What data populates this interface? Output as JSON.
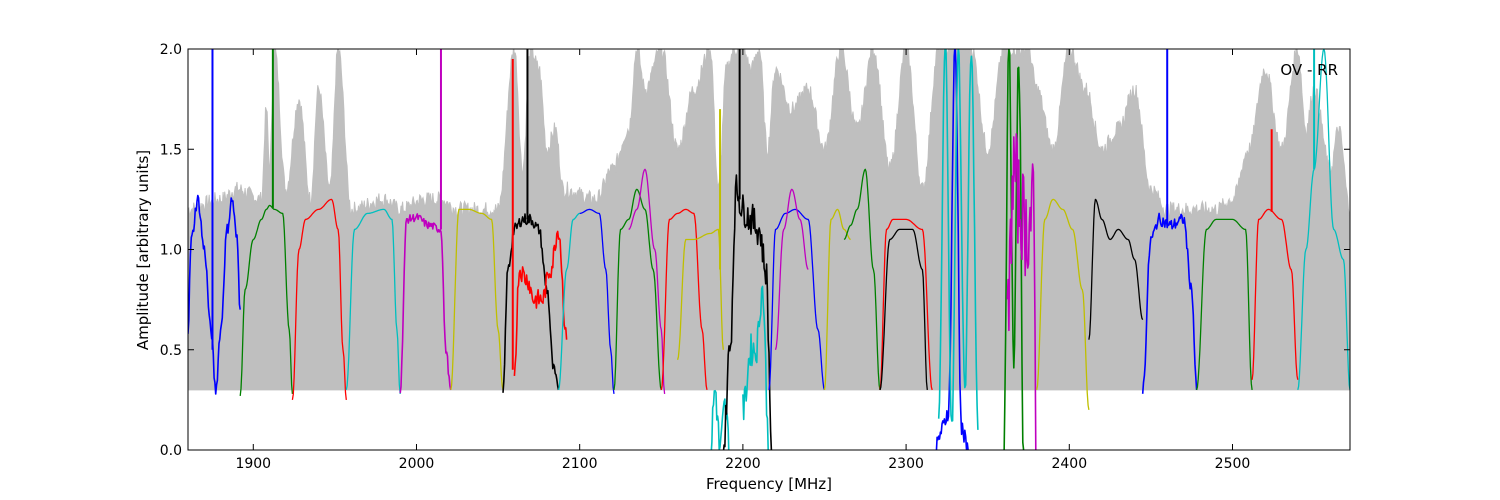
{
  "chart_data": {
    "type": "line",
    "annotation": "OV - RR",
    "xlabel": "Frequency [MHz]",
    "ylabel": "Amplitude [arbitrary units]",
    "xlim": [
      1860,
      2572
    ],
    "ylim": [
      0.0,
      2.0
    ],
    "xticks": [
      1900,
      2000,
      2100,
      2200,
      2300,
      2400,
      2500
    ],
    "xtick_labels": [
      "1900",
      "2000",
      "2100",
      "2200",
      "2300",
      "2400",
      "2500"
    ],
    "yticks": [
      0.0,
      0.5,
      1.0,
      1.5,
      2.0
    ],
    "ytick_labels": [
      "0.0",
      "0.5",
      "1.0",
      "1.5",
      "2.0"
    ],
    "grid": false,
    "background_envelope": {
      "color": "#bfbfbf",
      "x": [
        1860,
        1880,
        1890,
        1905,
        1908,
        1910,
        1913,
        1920,
        1928,
        1935,
        1940,
        1947,
        1952,
        1960,
        1980,
        1990,
        2005,
        2015,
        2025,
        2050,
        2060,
        2065,
        2070,
        2075,
        2080,
        2085,
        2090,
        2110,
        2120,
        2130,
        2135,
        2140,
        2150,
        2160,
        2170,
        2180,
        2185,
        2190,
        2195,
        2200,
        2205,
        2210,
        2215,
        2220,
        2230,
        2240,
        2250,
        2260,
        2270,
        2280,
        2290,
        2300,
        2310,
        2320,
        2330,
        2340,
        2350,
        2360,
        2365,
        2370,
        2375,
        2380,
        2390,
        2400,
        2410,
        2420,
        2430,
        2440,
        2450,
        2460,
        2470,
        2480,
        2490,
        2500,
        2510,
        2520,
        2530,
        2540,
        2545,
        2550,
        2560,
        2565,
        2572
      ],
      "y": [
        1.2,
        1.25,
        1.3,
        1.25,
        1.7,
        1.4,
        2.0,
        1.3,
        1.75,
        1.25,
        1.8,
        1.3,
        2.0,
        1.2,
        1.25,
        1.2,
        1.25,
        1.25,
        1.2,
        1.2,
        2.0,
        1.4,
        2.0,
        1.9,
        1.5,
        1.6,
        1.3,
        1.25,
        1.4,
        1.6,
        2.0,
        1.8,
        2.0,
        1.5,
        1.8,
        2.0,
        1.3,
        1.9,
        2.0,
        2.0,
        1.9,
        2.0,
        1.5,
        1.9,
        1.7,
        1.8,
        1.5,
        2.0,
        1.6,
        2.0,
        1.4,
        2.0,
        1.3,
        2.0,
        2.0,
        2.0,
        1.5,
        2.0,
        2.0,
        2.0,
        2.0,
        1.8,
        1.5,
        2.0,
        1.8,
        1.5,
        1.6,
        1.8,
        1.3,
        1.2,
        1.2,
        1.2,
        1.2,
        1.25,
        1.5,
        1.9,
        1.5,
        2.0,
        1.6,
        1.8,
        1.4,
        1.6,
        1.2
      ]
    },
    "series": [
      {
        "color": "#0000ff",
        "x": [
          1860,
          1862,
          1866,
          1870,
          1874,
          1877,
          1880,
          1884,
          1887,
          1890,
          1892
        ],
        "y": [
          0.6,
          1.05,
          1.25,
          1.0,
          0.6,
          0.3,
          0.6,
          1.1,
          1.25,
          1.05,
          0.7
        ],
        "noise": 0.03,
        "spike": {
          "x": 1875,
          "y": 2.0
        }
      },
      {
        "color": "#008000",
        "x": [
          1892,
          1895,
          1900,
          1905,
          1908,
          1910,
          1913,
          1918,
          1922,
          1924
        ],
        "y": [
          0.27,
          0.8,
          1.05,
          1.15,
          1.2,
          1.22,
          1.2,
          1.18,
          0.6,
          0.28
        ],
        "spike": {
          "x": 1912,
          "y": 2.0
        }
      },
      {
        "color": "#ff0000",
        "x": [
          1924,
          1928,
          1932,
          1940,
          1948,
          1952,
          1955,
          1957
        ],
        "y": [
          0.25,
          1.0,
          1.15,
          1.2,
          1.25,
          1.1,
          0.5,
          0.25
        ]
      },
      {
        "color": "#00bfbf",
        "x": [
          1957,
          1962,
          1970,
          1980,
          1985,
          1988,
          1990
        ],
        "y": [
          0.3,
          1.1,
          1.18,
          1.2,
          1.15,
          0.6,
          0.28
        ]
      },
      {
        "color": "#bf00bf",
        "x": [
          1990,
          1994,
          2000,
          2008,
          2015,
          2018,
          2021
        ],
        "y": [
          0.3,
          1.15,
          1.16,
          1.12,
          1.1,
          0.5,
          0.3
        ],
        "noise": 0.02,
        "spike": {
          "x": 2015,
          "y": 2.0
        }
      },
      {
        "color": "#bfbf00",
        "x": [
          2021,
          2026,
          2032,
          2040,
          2046,
          2050,
          2053
        ],
        "y": [
          0.3,
          1.2,
          1.2,
          1.18,
          1.15,
          0.6,
          0.3
        ]
      },
      {
        "color": "#000000",
        "x": [
          2053,
          2056,
          2060,
          2065,
          2070,
          2075,
          2080,
          2084,
          2087
        ],
        "y": [
          0.27,
          0.9,
          1.1,
          1.15,
          1.15,
          1.1,
          0.8,
          0.4,
          0.3
        ],
        "noise": 0.03,
        "spike": {
          "x": 2068,
          "y": 2.0
        }
      },
      {
        "color": "#ff0000",
        "x": [
          2060,
          2063,
          2068,
          2072,
          2077,
          2082,
          2087,
          2092
        ],
        "y": [
          0.4,
          0.9,
          0.85,
          0.75,
          0.75,
          0.9,
          1.1,
          0.55
        ],
        "noise": 0.05,
        "spike": {
          "x": 2059,
          "y": 1.95
        }
      },
      {
        "color": "#00bfbf",
        "x": [
          2087,
          2092,
          2096,
          2100
        ],
        "y": [
          0.3,
          0.9,
          1.15,
          1.18
        ]
      },
      {
        "color": "#0000ff",
        "x": [
          2100,
          2106,
          2112,
          2116,
          2119,
          2121
        ],
        "y": [
          1.18,
          1.2,
          1.18,
          0.9,
          0.5,
          0.28
        ]
      },
      {
        "color": "#008000",
        "x": [
          2121,
          2125,
          2130,
          2135,
          2140,
          2145,
          2150
        ],
        "y": [
          0.3,
          1.1,
          1.15,
          1.3,
          1.2,
          0.9,
          0.3
        ]
      },
      {
        "color": "#bf00bf",
        "x": [
          2130,
          2135,
          2140,
          2146,
          2150,
          2152
        ],
        "y": [
          1.1,
          1.2,
          1.4,
          1.0,
          0.6,
          0.28
        ]
      },
      {
        "color": "#ff0000",
        "x": [
          2150,
          2155,
          2160,
          2165,
          2170,
          2175,
          2178
        ],
        "y": [
          0.3,
          1.15,
          1.18,
          1.2,
          1.18,
          0.6,
          0.3
        ]
      },
      {
        "color": "#bfbf00",
        "x": [
          2160,
          2165,
          2170,
          2180,
          2185,
          2188
        ],
        "y": [
          0.45,
          1.05,
          1.05,
          1.08,
          1.1,
          0.5
        ],
        "spike": {
          "x": 2186,
          "y": 1.7
        }
      },
      {
        "color": "#00bfbf",
        "x": [
          2180,
          2183,
          2186,
          2189,
          2192
        ],
        "y": [
          0.0,
          0.3,
          0.0,
          0.2,
          0.0
        ],
        "noise": 0.1
      },
      {
        "color": "#000000",
        "x": [
          2188,
          2192,
          2196,
          2200,
          2205,
          2210,
          2214,
          2218
        ],
        "y": [
          0.0,
          0.5,
          1.3,
          1.2,
          1.15,
          1.1,
          0.9,
          0.0
        ],
        "noise": 0.08,
        "spike": {
          "x": 2198,
          "y": 2.0
        }
      },
      {
        "color": "#00bfbf",
        "x": [
          2200,
          2205,
          2208,
          2212,
          2216
        ],
        "y": [
          0.2,
          0.5,
          0.5,
          0.8,
          0.0
        ],
        "noise": 0.08
      },
      {
        "color": "#0000ff",
        "x": [
          2216,
          2220,
          2226,
          2232,
          2240,
          2246,
          2250
        ],
        "y": [
          0.3,
          1.1,
          1.18,
          1.2,
          1.15,
          0.6,
          0.3
        ]
      },
      {
        "color": "#bf00bf",
        "x": [
          2220,
          2225,
          2230,
          2235,
          2240
        ],
        "y": [
          0.5,
          1.1,
          1.3,
          1.15,
          0.9
        ]
      },
      {
        "color": "#bfbf00",
        "x": [
          2250,
          2254,
          2258,
          2262,
          2266
        ],
        "y": [
          0.3,
          1.15,
          1.2,
          1.1,
          1.05
        ]
      },
      {
        "color": "#008000",
        "x": [
          2262,
          2266,
          2270,
          2275,
          2280,
          2284
        ],
        "y": [
          1.05,
          1.12,
          1.2,
          1.4,
          0.9,
          0.3
        ]
      },
      {
        "color": "#ff0000",
        "x": [
          2284,
          2288,
          2292,
          2300,
          2310,
          2316
        ],
        "y": [
          0.3,
          1.1,
          1.15,
          1.15,
          1.1,
          0.3
        ]
      },
      {
        "color": "#000000",
        "x": [
          2284,
          2290,
          2296,
          2304,
          2310,
          2313
        ],
        "y": [
          0.3,
          1.05,
          1.1,
          1.1,
          0.9,
          0.3
        ]
      },
      {
        "color": "#0000ff",
        "x": [
          2318,
          2322,
          2326,
          2330,
          2334,
          2338
        ],
        "y": [
          0.0,
          0.1,
          0.2,
          2.0,
          0.1,
          0.0
        ],
        "noise": 0.05
      },
      {
        "color": "#00bfbf",
        "x": [
          2320,
          2324,
          2328,
          2332,
          2336,
          2340,
          2344
        ],
        "y": [
          0.2,
          2.0,
          0.1,
          2.0,
          0.3,
          2.0,
          0.1
        ],
        "noise": 0.05
      },
      {
        "color": "#008000",
        "x": [
          2360,
          2363,
          2366,
          2369,
          2372
        ],
        "y": [
          0.0,
          2.0,
          0.5,
          2.0,
          0.0
        ],
        "noise": 0.1
      },
      {
        "color": "#bf00bf",
        "x": [
          2362,
          2366,
          2370,
          2374,
          2378,
          2380
        ],
        "y": [
          0.6,
          1.4,
          1.2,
          1.1,
          1.2,
          0.0
        ],
        "noise": 0.25
      },
      {
        "color": "#bfbf00",
        "x": [
          2380,
          2385,
          2390,
          2396,
          2402,
          2408,
          2412
        ],
        "y": [
          0.3,
          1.15,
          1.25,
          1.2,
          1.1,
          0.8,
          0.2
        ]
      },
      {
        "color": "#000000",
        "x": [
          2412,
          2416,
          2420,
          2425,
          2430,
          2436,
          2440,
          2445
        ],
        "y": [
          0.55,
          1.25,
          1.15,
          1.05,
          1.1,
          1.05,
          0.95,
          0.65
        ]
      },
      {
        "color": "#0000ff",
        "x": [
          2445,
          2450,
          2455,
          2462,
          2470,
          2475,
          2478
        ],
        "y": [
          0.3,
          1.05,
          1.15,
          1.12,
          1.15,
          0.8,
          0.3
        ],
        "noise": 0.03,
        "spike": {
          "x": 2460,
          "y": 2.0
        }
      },
      {
        "color": "#008000",
        "x": [
          2478,
          2484,
          2490,
          2500,
          2508,
          2512
        ],
        "y": [
          0.3,
          1.1,
          1.15,
          1.15,
          1.1,
          0.3
        ]
      },
      {
        "color": "#ff0000",
        "x": [
          2512,
          2516,
          2522,
          2530,
          2536,
          2540
        ],
        "y": [
          0.35,
          1.15,
          1.2,
          1.15,
          0.9,
          0.35
        ],
        "spike": {
          "x": 2524,
          "y": 1.6
        }
      },
      {
        "color": "#00bfbf",
        "x": [
          2540,
          2545,
          2550,
          2556,
          2562,
          2568,
          2572
        ],
        "y": [
          0.3,
          1.0,
          1.4,
          2.0,
          1.1,
          0.95,
          0.3
        ],
        "spike": {
          "x": 2550,
          "y": 2.0
        }
      }
    ]
  }
}
